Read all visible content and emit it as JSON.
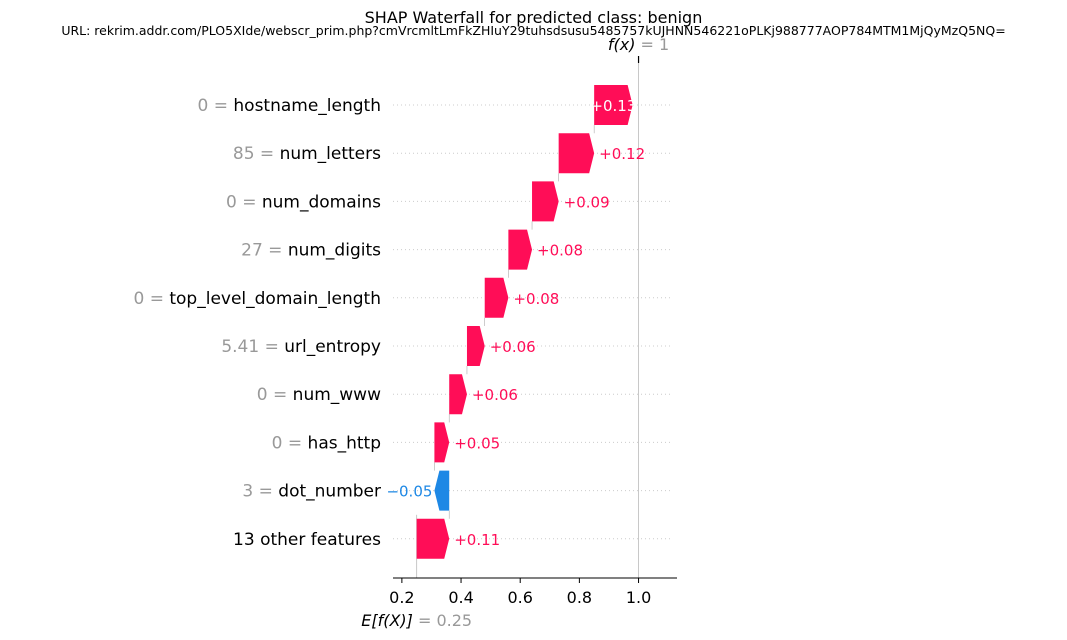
{
  "title": "SHAP Waterfall for predicted class: benign",
  "subtitle": "URL: rekrim.addr.com/PLO5XIde/webscr_prim.php?cmVrcmltLmFkZHIuY29tuhsdsusu5485757kUJHNN546221oPLKj988777AOP784MTM1MjQyMzQ5NQ=",
  "colors": {
    "positive": "#ff0d57",
    "negative": "#1e88e5",
    "feature_value": "#999999",
    "text": "#000000"
  },
  "chart_data": {
    "type": "waterfall",
    "base_value": 0.25,
    "output_value": 1,
    "base_label_expr": "E[f(X)]",
    "base_label_value": "= 0.25",
    "output_label_expr": "f(x)",
    "output_label_value": "= 1",
    "xlim": [
      0.17,
      1.13
    ],
    "xticks": [
      "0.2",
      "0.4",
      "0.6",
      "0.8",
      "1.0"
    ],
    "xtick_values": [
      0.2,
      0.4,
      0.6,
      0.8,
      1.0
    ],
    "features": [
      {
        "value": "0 =",
        "name": "hostname_length",
        "shap": 0.13,
        "label": "+0.13"
      },
      {
        "value": "85 =",
        "name": "num_letters",
        "shap": 0.12,
        "label": "+0.12"
      },
      {
        "value": "0 =",
        "name": "num_domains",
        "shap": 0.09,
        "label": "+0.09"
      },
      {
        "value": "27 =",
        "name": "num_digits",
        "shap": 0.08,
        "label": "+0.08"
      },
      {
        "value": "0 =",
        "name": "top_level_domain_length",
        "shap": 0.08,
        "label": "+0.08"
      },
      {
        "value": "5.41 =",
        "name": "url_entropy",
        "shap": 0.06,
        "label": "+0.06"
      },
      {
        "value": "0 =",
        "name": "num_www",
        "shap": 0.06,
        "label": "+0.06"
      },
      {
        "value": "0 =",
        "name": "has_http",
        "shap": 0.05,
        "label": "+0.05"
      },
      {
        "value": "3 =",
        "name": "dot_number",
        "shap": -0.05,
        "label": "−0.05"
      },
      {
        "value": "",
        "name": "13 other features",
        "shap": 0.11,
        "label": "+0.11"
      }
    ]
  }
}
